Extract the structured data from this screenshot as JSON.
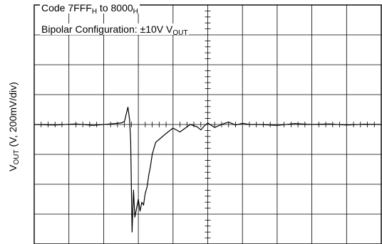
{
  "chart_data": {
    "type": "line",
    "annotation": {
      "line1_prefix": "Code 7FFF",
      "line1_sub1": "H",
      "line1_mid": " to 8000",
      "line1_sub2": "H",
      "line2_prefix": "Bipolar Configuration: ±10V V",
      "line2_sub": "OUT"
    },
    "ylabel": {
      "prefix": "V",
      "sub": "OUT",
      "suffix": " (V, 200mV/div)"
    },
    "grid": true,
    "x_divisions": 10,
    "y_divisions": 8,
    "x_range_div": [
      0,
      10
    ],
    "y_range_div": [
      -4,
      4
    ],
    "series": [
      {
        "x": [
          0,
          0.6,
          1.2,
          1.7,
          2.2,
          2.5,
          2.6,
          2.7,
          2.75,
          2.78,
          2.8,
          2.82,
          2.86,
          2.9,
          3.0,
          3.05,
          3.1,
          3.15,
          3.2,
          3.25,
          3.3,
          3.35,
          3.4,
          3.45,
          3.5,
          3.6,
          3.8,
          4.0,
          4.2,
          4.5,
          4.7,
          4.8,
          4.9,
          5.0,
          5.2,
          5.4,
          5.6,
          5.8,
          6.0,
          6.2,
          6.5,
          7.0,
          7.5,
          8.0,
          8.5,
          9.0,
          9.5,
          10.0
        ],
        "y": [
          0,
          -0.02,
          0.02,
          -0.03,
          0.02,
          0.05,
          0.1,
          0.58,
          0.15,
          -0.6,
          -2.2,
          -3.6,
          -2.2,
          -3.1,
          -2.5,
          -2.9,
          -2.6,
          -2.7,
          -2.3,
          -2.1,
          -1.7,
          -1.4,
          -1.0,
          -0.8,
          -0.6,
          -0.5,
          -0.3,
          -0.12,
          -0.25,
          0.0,
          -0.08,
          -0.18,
          -0.05,
          0.05,
          -0.1,
          0.0,
          0.08,
          -0.02,
          0.04,
          0.0,
          0.0,
          -0.03,
          0.03,
          0.0,
          0.02,
          -0.02,
          0.01,
          0.0
        ]
      }
    ]
  }
}
